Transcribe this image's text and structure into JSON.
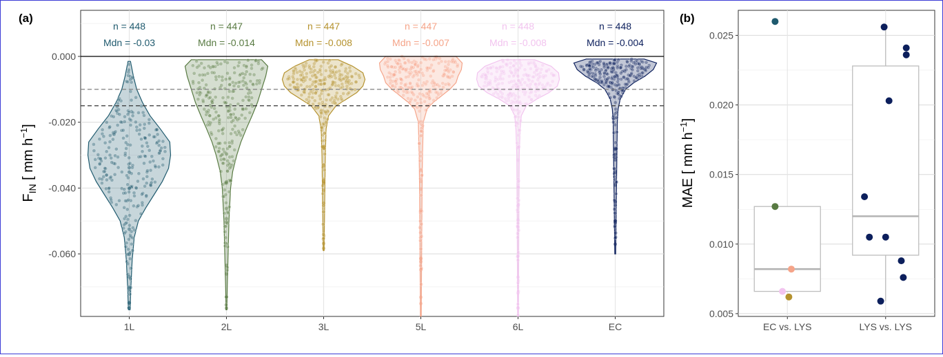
{
  "chart_data": [
    {
      "panel": "(a)",
      "type": "violin",
      "ylabel": {
        "main": "F",
        "sub": "IN",
        "unit_pre": " [ mm h",
        "sup": "−1",
        "unit_post": "]"
      },
      "ylim": [
        -0.079,
        0.014
      ],
      "yticks": [
        0.0,
        -0.02,
        -0.04,
        -0.06
      ],
      "ytick_labels": [
        "0.000",
        "-0.020",
        "-0.040",
        "-0.060"
      ],
      "grid": true,
      "hlines": [
        {
          "y": 0.0,
          "style": "solid",
          "color": "#000000"
        },
        {
          "y": -0.01,
          "style": "dashed",
          "color": "#7f7f7f"
        },
        {
          "y": -0.015,
          "style": "dashed",
          "color": "#333333"
        }
      ],
      "categories": [
        "1L",
        "2L",
        "3L",
        "5L",
        "6L",
        "EC"
      ],
      "series": [
        {
          "name": "1L",
          "color": "#1f5a6e",
          "n_label": "n = 448",
          "mdn_label": "Mdn = -0.03",
          "n": 448,
          "median": -0.03,
          "min": -0.077,
          "max": -0.0015,
          "density": [
            [
              -0.0015,
              0.03
            ],
            [
              -0.006,
              0.1
            ],
            [
              -0.01,
              0.18
            ],
            [
              -0.014,
              0.32
            ],
            [
              -0.018,
              0.5
            ],
            [
              -0.022,
              0.75
            ],
            [
              -0.026,
              0.98
            ],
            [
              -0.03,
              1.0
            ],
            [
              -0.034,
              0.95
            ],
            [
              -0.038,
              0.8
            ],
            [
              -0.042,
              0.6
            ],
            [
              -0.046,
              0.4
            ],
            [
              -0.05,
              0.22
            ],
            [
              -0.055,
              0.12
            ],
            [
              -0.062,
              0.07
            ],
            [
              -0.07,
              0.04
            ],
            [
              -0.077,
              0.02
            ]
          ]
        },
        {
          "name": "2L",
          "color": "#587a42",
          "n_label": "n = 447",
          "mdn_label": "Mdn = -0.014",
          "n": 447,
          "median": -0.014,
          "min": -0.077,
          "max": -0.001,
          "density": [
            [
              -0.001,
              0.85
            ],
            [
              -0.003,
              1.0
            ],
            [
              -0.006,
              0.95
            ],
            [
              -0.01,
              0.85
            ],
            [
              -0.014,
              0.75
            ],
            [
              -0.018,
              0.62
            ],
            [
              -0.022,
              0.48
            ],
            [
              -0.026,
              0.35
            ],
            [
              -0.03,
              0.25
            ],
            [
              -0.035,
              0.15
            ],
            [
              -0.04,
              0.1
            ],
            [
              -0.05,
              0.06
            ],
            [
              -0.06,
              0.04
            ],
            [
              -0.07,
              0.02
            ],
            [
              -0.077,
              0.01
            ]
          ]
        },
        {
          "name": "3L",
          "color": "#b5922e",
          "n_label": "n = 447",
          "mdn_label": "Mdn = -0.008",
          "n": 447,
          "median": -0.008,
          "min": -0.059,
          "max": -0.001,
          "density": [
            [
              -0.001,
              0.35
            ],
            [
              -0.003,
              0.7
            ],
            [
              -0.005,
              0.95
            ],
            [
              -0.007,
              1.0
            ],
            [
              -0.009,
              0.95
            ],
            [
              -0.011,
              0.8
            ],
            [
              -0.013,
              0.55
            ],
            [
              -0.015,
              0.3
            ],
            [
              -0.018,
              0.12
            ],
            [
              -0.022,
              0.06
            ],
            [
              -0.03,
              0.04
            ],
            [
              -0.04,
              0.03
            ],
            [
              -0.05,
              0.02
            ],
            [
              -0.059,
              0.01
            ]
          ]
        },
        {
          "name": "5L",
          "color": "#f5a489",
          "n_label": "n = 447",
          "mdn_label": "Mdn = -0.007",
          "n": 447,
          "median": -0.007,
          "min": -0.079,
          "max": 0.0,
          "density": [
            [
              0.0,
              0.85
            ],
            [
              -0.002,
              1.0
            ],
            [
              -0.004,
              0.98
            ],
            [
              -0.006,
              0.9
            ],
            [
              -0.008,
              0.85
            ],
            [
              -0.01,
              0.7
            ],
            [
              -0.012,
              0.5
            ],
            [
              -0.014,
              0.3
            ],
            [
              -0.016,
              0.15
            ],
            [
              -0.02,
              0.06
            ],
            [
              -0.03,
              0.04
            ],
            [
              -0.04,
              0.03
            ],
            [
              -0.06,
              0.02
            ],
            [
              -0.079,
              0.01
            ]
          ]
        },
        {
          "name": "6L",
          "color": "#f2c4ef",
          "n_label": "n = 448",
          "mdn_label": "Mdn = -0.008",
          "n": 448,
          "median": -0.008,
          "min": -0.079,
          "max": -0.001,
          "density": [
            [
              -0.001,
              0.4
            ],
            [
              -0.003,
              0.8
            ],
            [
              -0.005,
              0.98
            ],
            [
              -0.007,
              1.0
            ],
            [
              -0.009,
              0.95
            ],
            [
              -0.011,
              0.75
            ],
            [
              -0.013,
              0.45
            ],
            [
              -0.015,
              0.2
            ],
            [
              -0.018,
              0.08
            ],
            [
              -0.022,
              0.05
            ],
            [
              -0.03,
              0.03
            ],
            [
              -0.05,
              0.02
            ],
            [
              -0.079,
              0.01
            ]
          ]
        },
        {
          "name": "EC",
          "color": "#0c1f5c",
          "n_label": "n = 448",
          "mdn_label": "Mdn = -0.004",
          "n": 448,
          "median": -0.004,
          "min": -0.06,
          "max": -0.0008,
          "density": [
            [
              -0.0008,
              0.7
            ],
            [
              -0.002,
              1.0
            ],
            [
              -0.004,
              0.92
            ],
            [
              -0.006,
              0.72
            ],
            [
              -0.008,
              0.45
            ],
            [
              -0.01,
              0.25
            ],
            [
              -0.013,
              0.12
            ],
            [
              -0.016,
              0.07
            ],
            [
              -0.02,
              0.05
            ],
            [
              -0.03,
              0.04
            ],
            [
              -0.04,
              0.03
            ],
            [
              -0.05,
              0.02
            ],
            [
              -0.06,
              0.01
            ]
          ]
        }
      ]
    },
    {
      "panel": "(b)",
      "type": "box",
      "ylabel": {
        "main": "MAE",
        "unit_pre": " [ mm h",
        "sup": "−1",
        "unit_post": "]"
      },
      "ylim": [
        0.0048,
        0.0268
      ],
      "yticks": [
        0.005,
        0.01,
        0.015,
        0.02,
        0.025
      ],
      "ytick_labels": [
        "0.005",
        "0.010",
        "0.015",
        "0.020",
        "0.025"
      ],
      "grid": true,
      "categories": [
        "EC vs. LYS",
        "LYS vs. LYS"
      ],
      "boxes": [
        {
          "category": "EC vs. LYS",
          "q1": 0.0066,
          "median": 0.0082,
          "q3": 0.0127,
          "whisker_low": 0.0066,
          "whisker_high": 0.0127
        },
        {
          "category": "LYS vs. LYS",
          "q1": 0.0092,
          "median": 0.012,
          "q3": 0.0228,
          "whisker_low": 0.0059,
          "whisker_high": 0.0256
        }
      ],
      "points": [
        {
          "category": "EC vs. LYS",
          "jitter": -0.25,
          "y": 0.026,
          "color": "#1f5a6e"
        },
        {
          "category": "EC vs. LYS",
          "jitter": -0.25,
          "y": 0.0127,
          "color": "#587a42"
        },
        {
          "category": "EC vs. LYS",
          "jitter": 0.08,
          "y": 0.0082,
          "color": "#f5a489"
        },
        {
          "category": "EC vs. LYS",
          "jitter": -0.1,
          "y": 0.0066,
          "color": "#f2c4ef"
        },
        {
          "category": "EC vs. LYS",
          "jitter": 0.03,
          "y": 0.0062,
          "color": "#b5922e"
        },
        {
          "category": "LYS vs. LYS",
          "jitter": -0.03,
          "y": 0.0256,
          "color": "#0c1f5c"
        },
        {
          "category": "LYS vs. LYS",
          "jitter": 0.42,
          "y": 0.0241,
          "color": "#0c1f5c"
        },
        {
          "category": "LYS vs. LYS",
          "jitter": 0.42,
          "y": 0.0236,
          "color": "#0c1f5c"
        },
        {
          "category": "LYS vs. LYS",
          "jitter": 0.07,
          "y": 0.0203,
          "color": "#0c1f5c"
        },
        {
          "category": "LYS vs. LYS",
          "jitter": -0.43,
          "y": 0.0134,
          "color": "#0c1f5c"
        },
        {
          "category": "LYS vs. LYS",
          "jitter": -0.33,
          "y": 0.0105,
          "color": "#0c1f5c"
        },
        {
          "category": "LYS vs. LYS",
          "jitter": 0.0,
          "y": 0.0105,
          "color": "#0c1f5c"
        },
        {
          "category": "LYS vs. LYS",
          "jitter": 0.32,
          "y": 0.0088,
          "color": "#0c1f5c"
        },
        {
          "category": "LYS vs. LYS",
          "jitter": 0.36,
          "y": 0.0076,
          "color": "#0c1f5c"
        },
        {
          "category": "LYS vs. LYS",
          "jitter": -0.1,
          "y": 0.0059,
          "color": "#0c1f5c"
        }
      ]
    }
  ]
}
